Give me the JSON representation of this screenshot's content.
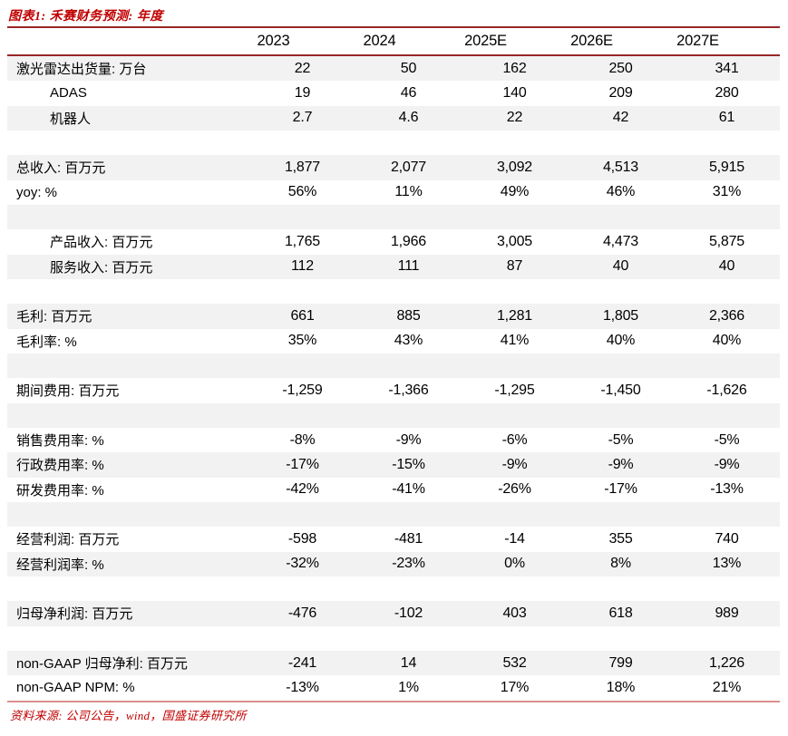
{
  "figure_title": "图表1: 禾赛财务预测: 年度",
  "source_note": "资料来源: 公司公告，wind，国盛证券研究所",
  "colors": {
    "accent_red": "#c00000",
    "border_dark": "#992728",
    "border_light": "#dd8f8f",
    "row_shade": "#f2f2f2",
    "text": "#000000"
  },
  "table": {
    "columns": [
      "2023",
      "2024",
      "2025E",
      "2026E",
      "2027E"
    ],
    "rows": [
      {
        "label": "激光雷达出货量: 万台",
        "indent": false,
        "shaded": true,
        "empty": false,
        "values": [
          "22",
          "50",
          "162",
          "250",
          "341"
        ]
      },
      {
        "label": "ADAS",
        "indent": true,
        "shaded": false,
        "empty": false,
        "values": [
          "19",
          "46",
          "140",
          "209",
          "280"
        ]
      },
      {
        "label": "机器人",
        "indent": true,
        "shaded": true,
        "empty": false,
        "values": [
          "2.7",
          "4.6",
          "22",
          "42",
          "61"
        ]
      },
      {
        "label": "",
        "indent": false,
        "shaded": false,
        "empty": true,
        "values": [
          "",
          "",
          "",
          "",
          ""
        ]
      },
      {
        "label": "总收入: 百万元",
        "indent": false,
        "shaded": true,
        "empty": false,
        "values": [
          "1,877",
          "2,077",
          "3,092",
          "4,513",
          "5,915"
        ]
      },
      {
        "label": "yoy: %",
        "indent": false,
        "shaded": false,
        "empty": false,
        "values": [
          "56%",
          "11%",
          "49%",
          "46%",
          "31%"
        ]
      },
      {
        "label": "",
        "indent": false,
        "shaded": true,
        "empty": true,
        "values": [
          "",
          "",
          "",
          "",
          ""
        ]
      },
      {
        "label": "产品收入: 百万元",
        "indent": true,
        "shaded": false,
        "empty": false,
        "values": [
          "1,765",
          "1,966",
          "3,005",
          "4,473",
          "5,875"
        ]
      },
      {
        "label": "服务收入: 百万元",
        "indent": true,
        "shaded": true,
        "empty": false,
        "values": [
          "112",
          "111",
          "87",
          "40",
          "40"
        ]
      },
      {
        "label": "",
        "indent": false,
        "shaded": false,
        "empty": true,
        "values": [
          "",
          "",
          "",
          "",
          ""
        ]
      },
      {
        "label": "毛利: 百万元",
        "indent": false,
        "shaded": true,
        "empty": false,
        "values": [
          "661",
          "885",
          "1,281",
          "1,805",
          "2,366"
        ]
      },
      {
        "label": "毛利率: %",
        "indent": false,
        "shaded": false,
        "empty": false,
        "values": [
          "35%",
          "43%",
          "41%",
          "40%",
          "40%"
        ]
      },
      {
        "label": "",
        "indent": false,
        "shaded": true,
        "empty": true,
        "values": [
          "",
          "",
          "",
          "",
          ""
        ]
      },
      {
        "label": "期间费用: 百万元",
        "indent": false,
        "shaded": false,
        "empty": false,
        "values": [
          "-1,259",
          "-1,366",
          "-1,295",
          "-1,450",
          "-1,626"
        ]
      },
      {
        "label": "",
        "indent": false,
        "shaded": true,
        "empty": true,
        "values": [
          "",
          "",
          "",
          "",
          ""
        ]
      },
      {
        "label": "销售费用率: %",
        "indent": false,
        "shaded": false,
        "empty": false,
        "values": [
          "-8%",
          "-9%",
          "-6%",
          "-5%",
          "-5%"
        ]
      },
      {
        "label": "行政费用率: %",
        "indent": false,
        "shaded": true,
        "empty": false,
        "values": [
          "-17%",
          "-15%",
          "-9%",
          "-9%",
          "-9%"
        ]
      },
      {
        "label": "研发费用率: %",
        "indent": false,
        "shaded": false,
        "empty": false,
        "values": [
          "-42%",
          "-41%",
          "-26%",
          "-17%",
          "-13%"
        ]
      },
      {
        "label": "",
        "indent": false,
        "shaded": true,
        "empty": true,
        "values": [
          "",
          "",
          "",
          "",
          ""
        ]
      },
      {
        "label": "经营利润: 百万元",
        "indent": false,
        "shaded": false,
        "empty": false,
        "values": [
          "-598",
          "-481",
          "-14",
          "355",
          "740"
        ]
      },
      {
        "label": "经营利润率: %",
        "indent": false,
        "shaded": true,
        "empty": false,
        "values": [
          "-32%",
          "-23%",
          "0%",
          "8%",
          "13%"
        ]
      },
      {
        "label": "",
        "indent": false,
        "shaded": false,
        "empty": true,
        "values": [
          "",
          "",
          "",
          "",
          ""
        ]
      },
      {
        "label": "归母净利润: 百万元",
        "indent": false,
        "shaded": true,
        "empty": false,
        "values": [
          "-476",
          "-102",
          "403",
          "618",
          "989"
        ]
      },
      {
        "label": "",
        "indent": false,
        "shaded": false,
        "empty": true,
        "values": [
          "",
          "",
          "",
          "",
          ""
        ]
      },
      {
        "label": "non-GAAP 归母净利: 百万元",
        "indent": false,
        "shaded": true,
        "empty": false,
        "values": [
          "-241",
          "14",
          "532",
          "799",
          "1,226"
        ]
      },
      {
        "label": "non-GAAP NPM: %",
        "indent": false,
        "shaded": false,
        "empty": false,
        "values": [
          "-13%",
          "1%",
          "17%",
          "18%",
          "21%"
        ]
      }
    ]
  }
}
